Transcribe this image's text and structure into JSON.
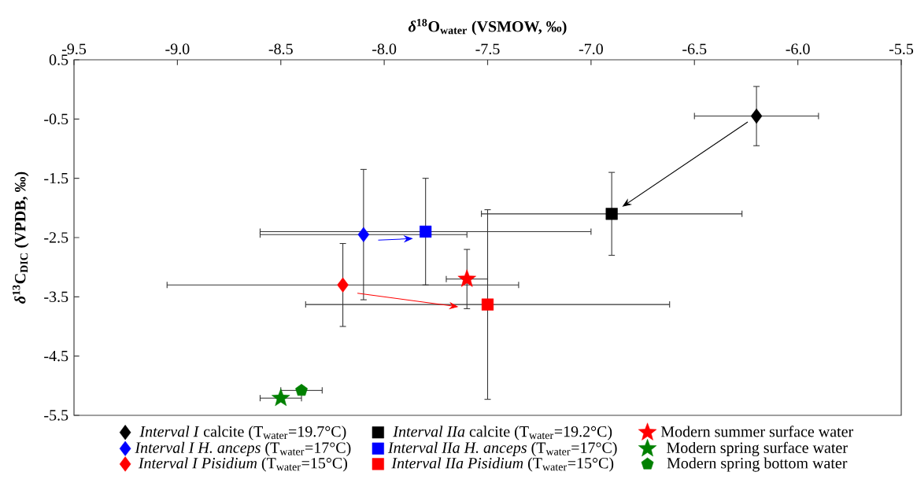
{
  "chart_data": {
    "type": "scatter",
    "xlabel": "*δ*$^{18}$O$_{water}$ (VSMOW, ‰)",
    "ylabel": "*δ*$^{13}$C$_{DIC}$ (VPDB, ‰)",
    "xlim": [
      -9.5,
      -5.5
    ],
    "xticks": [
      -9.5,
      {
        "value": -9,
        "label": "-9.0"
      },
      -8.5,
      {
        "value": -8,
        "label": "-8.0"
      },
      -7.5,
      {
        "value": -7,
        "label": "-7.0"
      },
      -6.5,
      {
        "value": -6,
        "label": "-6.0"
      },
      -5.5
    ],
    "ylim": [
      -5.5,
      0.5
    ],
    "yticks": [
      -5.5,
      -4.5,
      -3.5,
      -2.5,
      -1.5,
      -0.5,
      0.5
    ],
    "legend": "bottom",
    "series": [
      {
        "name": "*Interval I* calcite (T$_{water}$=19.7°C)",
        "color": "#000000",
        "marker": "diamond",
        "x": [
          -6.2
        ],
        "values": [
          -0.45
        ],
        "errors": [
          0.5
        ],
        "xerrors": [
          0.3
        ]
      },
      {
        "name": "*Interval I H. anceps* (T$_{water}$=17°C)",
        "color": "#0000ff",
        "marker": "diamond",
        "x": [
          -8.1
        ],
        "values": [
          -2.45
        ],
        "errors": [
          1.1
        ],
        "xerrors": [
          0.5
        ]
      },
      {
        "name": "*Interval I Pisidium* (T$_{water}$=15°C)",
        "color": "#ff0000",
        "marker": "diamond",
        "x": [
          -8.2
        ],
        "values": [
          -3.3
        ],
        "errors": [
          0.7
        ],
        "xerrors": [
          0.85
        ]
      },
      {
        "name": "*Interval IIa* calcite (T$_{water}$=19.2°C)",
        "color": "#000000",
        "marker": "square",
        "x": [
          -6.9
        ],
        "values": [
          -2.1
        ],
        "errors": [
          0.7
        ],
        "xerrors": [
          0.63
        ]
      },
      {
        "name": "*Interval IIa H. anceps* (T$_{water}$=17°C)",
        "color": "#0000ff",
        "marker": "square",
        "x": [
          -7.8
        ],
        "values": [
          -2.4
        ],
        "errors": [
          0.9
        ],
        "xerrors": [
          0.8
        ]
      },
      {
        "name": "*Interval IIa Pisidium* (T$_{water}$=15°C)",
        "color": "#ff0000",
        "marker": "square",
        "x": [
          -7.5
        ],
        "values": [
          -3.63
        ],
        "errors": [
          1.6
        ],
        "xerrors": [
          0.88
        ]
      },
      {
        "name": "Modern summer surface water",
        "color": "#ff0000",
        "marker": "star",
        "x": [
          -7.6
        ],
        "values": [
          -3.2
        ],
        "errors": [
          0.5
        ],
        "xerrors": [
          0.1
        ]
      },
      {
        "name": "Modern spring surface water",
        "color": "#008000",
        "marker": "star",
        "x": [
          -8.5
        ],
        "values": [
          -5.21
        ],
        "errors": [
          null
        ],
        "xerrors": [
          0.1
        ]
      },
      {
        "name": "Modern spring bottom water",
        "color": "#008000",
        "x": [
          -8.4
        ],
        "values": [
          -5.08
        ],
        "errors": [
          null
        ],
        "xerrors": [
          0.1
        ]
      }
    ]
  }
}
